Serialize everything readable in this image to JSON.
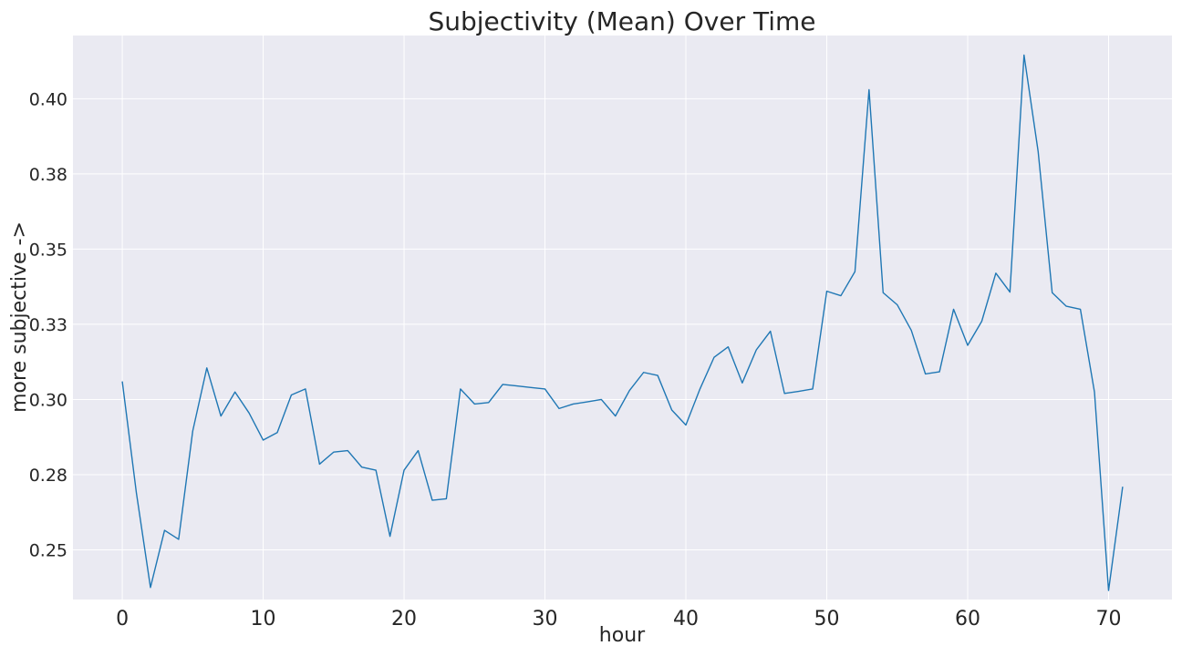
{
  "chart_data": {
    "type": "line",
    "title": "Subjectivity (Mean) Over Time",
    "xlabel": "hour",
    "ylabel": "more subjective ->",
    "xlim": [
      -3.5,
      74.5
    ],
    "ylim": [
      0.2335,
      0.421
    ],
    "xticks": [
      0,
      10,
      20,
      30,
      40,
      50,
      60,
      70
    ],
    "xtick_labels": [
      "0",
      "10",
      "20",
      "30",
      "40",
      "50",
      "60",
      "70"
    ],
    "yticks": [
      0.25,
      0.275,
      0.3,
      0.325,
      0.35,
      0.375,
      0.4
    ],
    "ytick_labels": [
      "0.25",
      "0.28",
      "0.30",
      "0.33",
      "0.35",
      "0.38",
      "0.40"
    ],
    "grid": true,
    "style": {
      "background": "#eaeaf2",
      "grid_color": "#ffffff",
      "line_color": "#1f77b4"
    },
    "series": [
      {
        "x": [
          0,
          1,
          2,
          3,
          4,
          5,
          6,
          7,
          8,
          9,
          10,
          11,
          12,
          13,
          14,
          15,
          16,
          17,
          18,
          19,
          20,
          21,
          22,
          23,
          24,
          25,
          26,
          27,
          28,
          29,
          30,
          31,
          32,
          33,
          34,
          35,
          36,
          37,
          38,
          39,
          40,
          41,
          42,
          43,
          44,
          45,
          46,
          47,
          48,
          49,
          50,
          51,
          52,
          53,
          54,
          55,
          56,
          57,
          58,
          59,
          60,
          61,
          62,
          63,
          64,
          65,
          66,
          67,
          68,
          69,
          70,
          71
        ],
        "y": [
          0.306,
          0.269,
          0.2375,
          0.2565,
          0.2535,
          0.2895,
          0.3105,
          0.2945,
          0.3025,
          0.2955,
          0.2865,
          0.289,
          0.3015,
          0.3035,
          0.2785,
          0.2825,
          0.283,
          0.2775,
          0.2765,
          0.2545,
          0.2765,
          0.283,
          0.2665,
          0.267,
          0.3035,
          0.2985,
          0.299,
          0.305,
          0.3045,
          0.304,
          0.3035,
          0.297,
          0.2985,
          0.2992,
          0.3,
          0.2945,
          0.303,
          0.309,
          0.308,
          0.2965,
          0.2915,
          0.3035,
          0.314,
          0.3175,
          0.3055,
          0.3165,
          0.3227,
          0.302,
          0.3027,
          0.3035,
          0.336,
          0.3345,
          0.3425,
          0.403,
          0.3355,
          0.3315,
          0.323,
          0.3085,
          0.3092,
          0.33,
          0.318,
          0.326,
          0.342,
          0.3357,
          0.4145,
          0.3825,
          0.3355,
          0.331,
          0.33,
          0.3025,
          0.2365,
          0.271
        ]
      }
    ]
  }
}
